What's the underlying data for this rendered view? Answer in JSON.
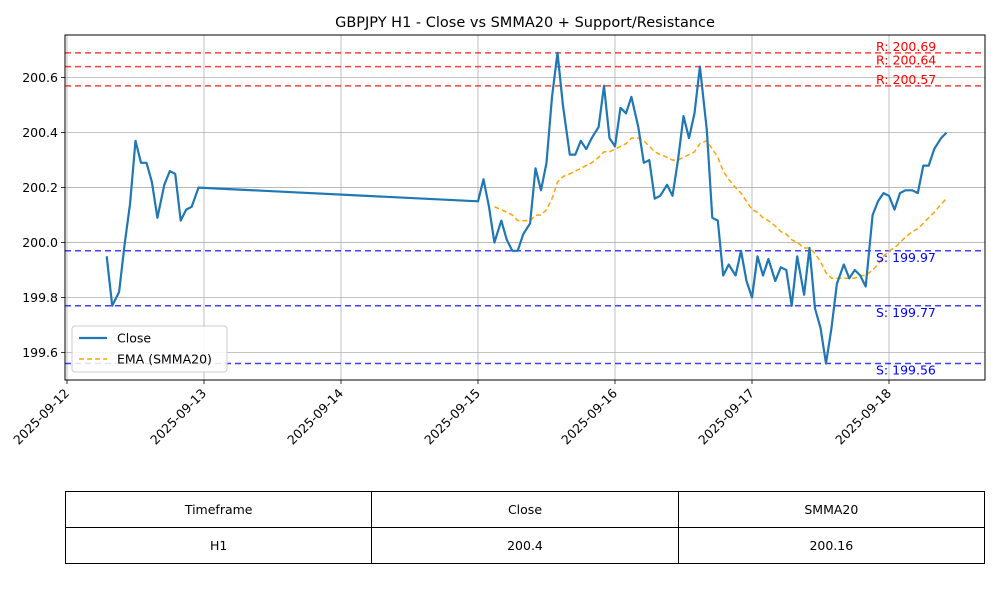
{
  "chart_data": {
    "type": "line",
    "title": "GBPJPY H1 - Close vs SMMA20 + Support/Resistance",
    "xlabel": "",
    "ylabel": "",
    "ylim": [
      199.5,
      200.755
    ],
    "x_tick_labels": [
      "2025-09-12",
      "2025-09-13",
      "2025-09-14",
      "2025-09-15",
      "2025-09-16",
      "2025-09-17",
      "2025-09-18"
    ],
    "y_tick_labels": [
      "199.6",
      "199.8",
      "200.0",
      "200.2",
      "200.4",
      "200.6"
    ],
    "grid": true,
    "legend_position": "center-left",
    "legend": [
      "Close",
      "EMA (SMMA20)"
    ],
    "colors": {
      "close": "#1f77b4",
      "smma": "#ffa500",
      "resistance": "#ff0000",
      "support": "#0000ff"
    },
    "series": [
      {
        "name": "Close",
        "style": "solid",
        "points": [
          [
            0.29,
            199.95
          ],
          [
            0.33,
            199.77
          ],
          [
            0.38,
            199.82
          ],
          [
            0.42,
            199.99
          ],
          [
            0.46,
            200.14
          ],
          [
            0.5,
            200.37
          ],
          [
            0.54,
            200.29
          ],
          [
            0.58,
            200.29
          ],
          [
            0.62,
            200.22
          ],
          [
            0.66,
            200.09
          ],
          [
            0.71,
            200.21
          ],
          [
            0.75,
            200.26
          ],
          [
            0.79,
            200.25
          ],
          [
            0.83,
            200.08
          ],
          [
            0.87,
            200.12
          ],
          [
            0.91,
            200.13
          ],
          [
            0.96,
            200.2
          ],
          [
            3.0,
            200.15
          ],
          [
            3.04,
            200.23
          ],
          [
            3.08,
            200.13
          ],
          [
            3.12,
            200.0
          ],
          [
            3.17,
            200.08
          ],
          [
            3.21,
            200.01
          ],
          [
            3.25,
            199.97
          ],
          [
            3.29,
            199.97
          ],
          [
            3.33,
            200.03
          ],
          [
            3.38,
            200.07
          ],
          [
            3.42,
            200.27
          ],
          [
            3.46,
            200.19
          ],
          [
            3.5,
            200.29
          ],
          [
            3.54,
            200.53
          ],
          [
            3.58,
            200.69
          ],
          [
            3.62,
            200.5
          ],
          [
            3.67,
            200.32
          ],
          [
            3.71,
            200.32
          ],
          [
            3.75,
            200.37
          ],
          [
            3.79,
            200.34
          ],
          [
            3.83,
            200.38
          ],
          [
            3.88,
            200.42
          ],
          [
            3.92,
            200.57
          ],
          [
            3.96,
            200.38
          ],
          [
            4.0,
            200.35
          ],
          [
            4.04,
            200.49
          ],
          [
            4.08,
            200.47
          ],
          [
            4.12,
            200.53
          ],
          [
            4.17,
            200.42
          ],
          [
            4.21,
            200.29
          ],
          [
            4.25,
            200.3
          ],
          [
            4.29,
            200.16
          ],
          [
            4.33,
            200.17
          ],
          [
            4.38,
            200.21
          ],
          [
            4.42,
            200.17
          ],
          [
            4.46,
            200.3
          ],
          [
            4.5,
            200.46
          ],
          [
            4.54,
            200.38
          ],
          [
            4.58,
            200.47
          ],
          [
            4.62,
            200.64
          ],
          [
            4.67,
            200.41
          ],
          [
            4.71,
            200.09
          ],
          [
            4.75,
            200.08
          ],
          [
            4.79,
            199.88
          ],
          [
            4.83,
            199.92
          ],
          [
            4.88,
            199.88
          ],
          [
            4.92,
            199.97
          ],
          [
            4.96,
            199.86
          ],
          [
            5.0,
            199.8
          ],
          [
            5.04,
            199.95
          ],
          [
            5.08,
            199.88
          ],
          [
            5.12,
            199.94
          ],
          [
            5.17,
            199.86
          ],
          [
            5.21,
            199.91
          ],
          [
            5.25,
            199.9
          ],
          [
            5.29,
            199.77
          ],
          [
            5.33,
            199.95
          ],
          [
            5.38,
            199.81
          ],
          [
            5.42,
            199.98
          ],
          [
            5.46,
            199.76
          ],
          [
            5.5,
            199.69
          ],
          [
            5.54,
            199.56
          ],
          [
            5.58,
            199.69
          ],
          [
            5.62,
            199.85
          ],
          [
            5.67,
            199.92
          ],
          [
            5.71,
            199.87
          ],
          [
            5.75,
            199.9
          ],
          [
            5.79,
            199.88
          ],
          [
            5.83,
            199.84
          ],
          [
            5.88,
            200.1
          ],
          [
            5.92,
            200.15
          ],
          [
            5.96,
            200.18
          ],
          [
            6.0,
            200.17
          ],
          [
            6.04,
            200.12
          ],
          [
            6.08,
            200.18
          ],
          [
            6.12,
            200.19
          ],
          [
            6.17,
            200.19
          ],
          [
            6.21,
            200.18
          ],
          [
            6.25,
            200.28
          ],
          [
            6.29,
            200.28
          ],
          [
            6.33,
            200.34
          ],
          [
            6.38,
            200.38
          ],
          [
            6.42,
            200.4
          ]
        ]
      },
      {
        "name": "EMA (SMMA20)",
        "style": "dashed",
        "points": [
          [
            3.12,
            200.13
          ],
          [
            3.17,
            200.12
          ],
          [
            3.21,
            200.11
          ],
          [
            3.25,
            200.1
          ],
          [
            3.29,
            200.08
          ],
          [
            3.33,
            200.08
          ],
          [
            3.38,
            200.08
          ],
          [
            3.42,
            200.1
          ],
          [
            3.46,
            200.1
          ],
          [
            3.5,
            200.12
          ],
          [
            3.54,
            200.16
          ],
          [
            3.58,
            200.22
          ],
          [
            3.62,
            200.24
          ],
          [
            3.67,
            200.25
          ],
          [
            3.71,
            200.26
          ],
          [
            3.75,
            200.27
          ],
          [
            3.79,
            200.28
          ],
          [
            3.83,
            200.29
          ],
          [
            3.88,
            200.31
          ],
          [
            3.92,
            200.33
          ],
          [
            3.96,
            200.33
          ],
          [
            4.0,
            200.34
          ],
          [
            4.04,
            200.35
          ],
          [
            4.08,
            200.36
          ],
          [
            4.12,
            200.38
          ],
          [
            4.17,
            200.38
          ],
          [
            4.21,
            200.37
          ],
          [
            4.25,
            200.35
          ],
          [
            4.29,
            200.33
          ],
          [
            4.33,
            200.32
          ],
          [
            4.38,
            200.31
          ],
          [
            4.42,
            200.3
          ],
          [
            4.46,
            200.3
          ],
          [
            4.5,
            200.31
          ],
          [
            4.54,
            200.32
          ],
          [
            4.58,
            200.33
          ],
          [
            4.62,
            200.36
          ],
          [
            4.67,
            200.37
          ],
          [
            4.71,
            200.34
          ],
          [
            4.75,
            200.31
          ],
          [
            4.79,
            200.26
          ],
          [
            4.83,
            200.23
          ],
          [
            4.88,
            200.2
          ],
          [
            4.92,
            200.18
          ],
          [
            4.96,
            200.15
          ],
          [
            5.0,
            200.12
          ],
          [
            5.04,
            200.11
          ],
          [
            5.08,
            200.09
          ],
          [
            5.12,
            200.08
          ],
          [
            5.17,
            200.06
          ],
          [
            5.21,
            200.04
          ],
          [
            5.25,
            200.03
          ],
          [
            5.29,
            200.01
          ],
          [
            5.33,
            200.0
          ],
          [
            5.38,
            199.98
          ],
          [
            5.42,
            199.98
          ],
          [
            5.46,
            199.96
          ],
          [
            5.5,
            199.93
          ],
          [
            5.54,
            199.89
          ],
          [
            5.58,
            199.87
          ],
          [
            5.62,
            199.87
          ],
          [
            5.67,
            199.87
          ],
          [
            5.71,
            199.87
          ],
          [
            5.75,
            199.87
          ],
          [
            5.79,
            199.88
          ],
          [
            5.83,
            199.88
          ],
          [
            5.88,
            199.9
          ],
          [
            5.92,
            199.92
          ],
          [
            5.96,
            199.95
          ],
          [
            6.0,
            199.97
          ],
          [
            6.04,
            199.98
          ],
          [
            6.08,
            200.0
          ],
          [
            6.12,
            200.02
          ],
          [
            6.17,
            200.04
          ],
          [
            6.21,
            200.05
          ],
          [
            6.25,
            200.07
          ],
          [
            6.29,
            200.09
          ],
          [
            6.33,
            200.11
          ],
          [
            6.38,
            200.14
          ],
          [
            6.42,
            200.16
          ]
        ]
      }
    ],
    "resistance_levels": [
      {
        "value": 200.69,
        "label": "R: 200.69"
      },
      {
        "value": 200.64,
        "label": "R: 200.64"
      },
      {
        "value": 200.57,
        "label": "R: 200.57"
      }
    ],
    "support_levels": [
      {
        "value": 199.97,
        "label": "S: 199.97"
      },
      {
        "value": 199.77,
        "label": "S: 199.77"
      },
      {
        "value": 199.56,
        "label": "S: 199.56"
      }
    ]
  },
  "table": {
    "headers": [
      "Timeframe",
      "Close",
      "SMMA20"
    ],
    "rows": [
      [
        "H1",
        "200.4",
        "200.16"
      ]
    ]
  }
}
